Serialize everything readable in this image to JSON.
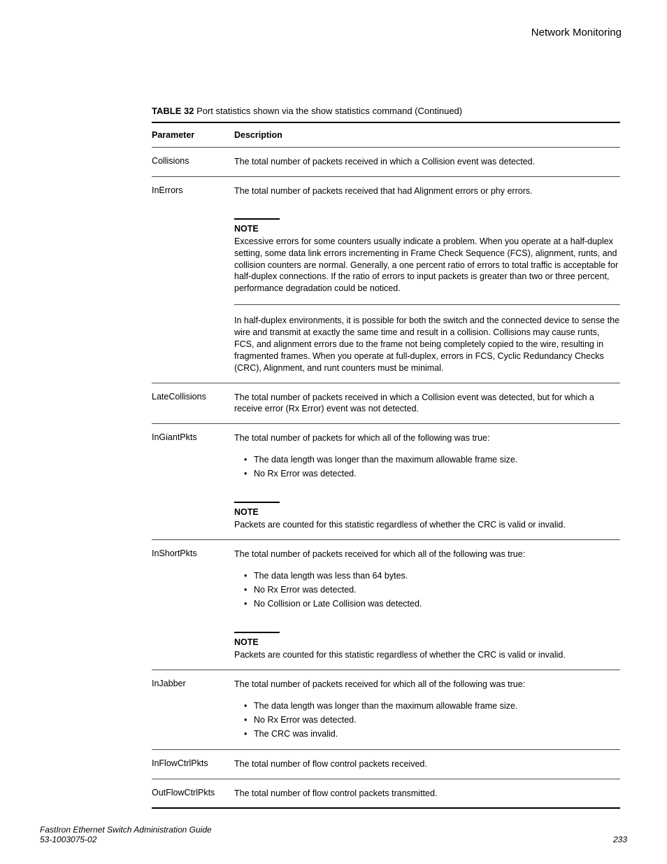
{
  "header": {
    "section_title": "Network Monitoring"
  },
  "table": {
    "caption_label": "TABLE 32",
    "caption_text": "Port statistics shown via the show statistics command (Continued)",
    "head": {
      "parameter": "Parameter",
      "description": "Description"
    },
    "rows": {
      "collisions": {
        "param": "Collisions",
        "desc": "The total number of packets received in which a Collision event was detected."
      },
      "inerrors": {
        "param": "InErrors",
        "desc": "The total number of packets received that had Alignment errors or phy errors.",
        "note_label": "NOTE",
        "note_p1": "Excessive errors for some counters usually indicate a problem. When you operate at a half-duplex setting, some data link errors incrementing in Frame Check Sequence (FCS), alignment, runts, and collision counters are normal. Generally, a one percent ratio of errors to total traffic is acceptable for half-duplex connections. If the ratio of errors to input packets is greater than two or three percent, performance degradation could be noticed.",
        "note_p2": "In half-duplex environments, it is possible for both the switch and the connected device to sense the wire and transmit at exactly the same time and result in a collision. Collisions may cause runts, FCS, and alignment errors due to the frame not being completely copied to the wire, resulting in fragmented frames. When you operate at full-duplex, errors in FCS, Cyclic Redundancy Checks (CRC), Alignment, and runt counters must be minimal."
      },
      "latecollisions": {
        "param": "LateCollisions",
        "desc": "The total number of packets received in which a Collision event was detected, but for which a receive error (Rx Error) event was not detected."
      },
      "ingiantpkts": {
        "param": "InGiantPkts",
        "desc": "The total number of packets for which all of the following was true:",
        "bullets": {
          "b1": "The data length was longer than the maximum allowable frame size.",
          "b2": "No Rx Error was detected."
        },
        "note_label": "NOTE",
        "note_body": "Packets are counted for this statistic regardless of whether the CRC is valid or invalid."
      },
      "inshortpkts": {
        "param": "InShortPkts",
        "desc": "The total number of packets received for which all of the following was true:",
        "bullets": {
          "b1": "The data length was less than 64 bytes.",
          "b2": "No Rx Error was detected.",
          "b3": "No Collision or Late Collision was detected."
        },
        "note_label": "NOTE",
        "note_body": "Packets are counted for this statistic regardless of whether the CRC is valid or invalid."
      },
      "injabber": {
        "param": "InJabber",
        "desc": "The total number of packets received for which all of the following was true:",
        "bullets": {
          "b1": "The data length was longer than the maximum allowable frame size.",
          "b2": "No Rx Error was detected.",
          "b3": "The CRC was invalid."
        }
      },
      "inflowctrlpkts": {
        "param": "InFlowCtrlPkts",
        "desc": "The total number of flow control packets received."
      },
      "outflowctrlpkts": {
        "param": "OutFlowCtrlPkts",
        "desc": "The total number of flow control packets transmitted."
      }
    }
  },
  "footer": {
    "guide_title": "FastIron Ethernet Switch Administration Guide",
    "doc_number": "53-1003075-02",
    "page_number": "233"
  }
}
